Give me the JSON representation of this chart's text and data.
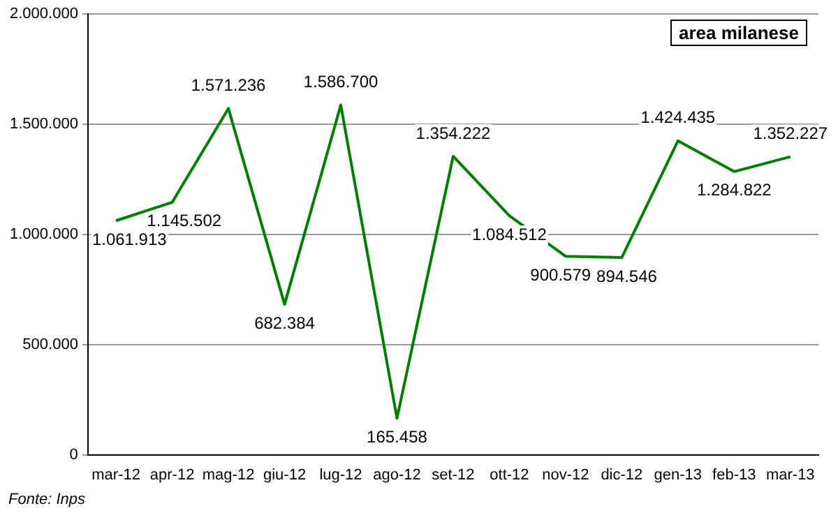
{
  "chart_data": {
    "type": "line",
    "categories": [
      "mar-12",
      "apr-12",
      "mag-12",
      "giu-12",
      "lug-12",
      "ago-12",
      "set-12",
      "ott-12",
      "nov-12",
      "dic-12",
      "gen-13",
      "feb-13",
      "mar-13"
    ],
    "series": [
      {
        "color": "#008000",
        "values": [
          1061913,
          1145502,
          1571236,
          682384,
          1586700,
          165458,
          1354222,
          1084512,
          900579,
          894546,
          1424435,
          1284822,
          1352227
        ],
        "value_labels": [
          "1.061.913",
          "1.145.502",
          "1.571.236",
          "682.384",
          "1.586.700",
          "165.458",
          "1.354.222",
          "1.084.512",
          "900.579",
          "894.546",
          "1.424.435",
          "1.284.822",
          "1.352.227"
        ]
      }
    ],
    "ylim": [
      0,
      2000000
    ],
    "yticks": [
      0,
      {
        "value": 500000,
        "label": "500.000"
      },
      {
        "value": 1000000,
        "label": "1.000.000"
      },
      {
        "value": 1500000,
        "label": "1.500.000"
      },
      {
        "value": 2000000,
        "label": "2.000.000"
      }
    ],
    "grid": "y",
    "legend": false,
    "marker": "none",
    "line_style": "solid",
    "annotations": [
      "area milanese",
      "Fonte: Inps"
    ]
  }
}
